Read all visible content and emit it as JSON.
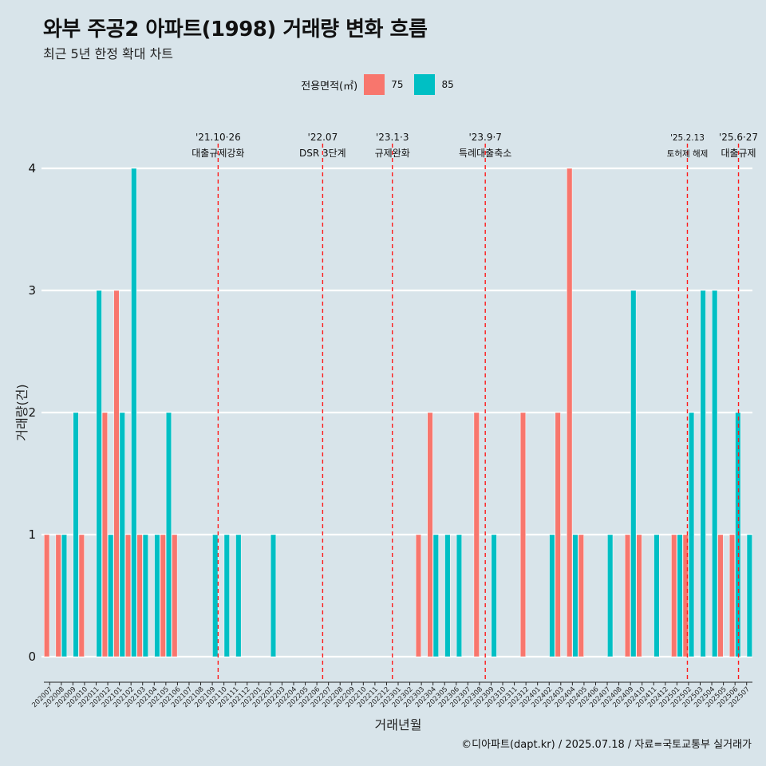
{
  "header": {
    "title": "와부 주공2 아파트(1998) 거래량 변화 흐름",
    "subtitle": "최근 5년 한정 확대 차트"
  },
  "legend": {
    "title": "전용면적(㎡)",
    "items": [
      {
        "label": "75",
        "color": "#f8766d"
      },
      {
        "label": "85",
        "color": "#00bfc4"
      }
    ]
  },
  "caption": "©디아파트(dapt.kr) / 2025.07.18 / 자료=국토교통부 실거래가",
  "chart_data": {
    "type": "bar",
    "title": "와부 주공2 아파트(1998) 거래량 변화 흐름",
    "xlabel": "거래년월",
    "ylabel": "거래량(건)",
    "ylim": [
      0,
      4
    ],
    "yticks": [
      0,
      1,
      2,
      3,
      4
    ],
    "categories": [
      "202007",
      "202008",
      "202009",
      "202010",
      "202011",
      "202012",
      "202101",
      "202102",
      "202103",
      "202104",
      "202105",
      "202106",
      "202107",
      "202108",
      "202109",
      "202110",
      "202111",
      "202112",
      "202201",
      "202202",
      "202203",
      "202204",
      "202205",
      "202206",
      "202207",
      "202208",
      "202209",
      "202210",
      "202211",
      "202212",
      "202301",
      "202302",
      "202303",
      "202304",
      "202305",
      "202306",
      "202307",
      "202308",
      "202309",
      "202310",
      "202311",
      "202312",
      "202401",
      "202402",
      "202403",
      "202404",
      "202405",
      "202406",
      "202407",
      "202408",
      "202409",
      "202410",
      "202411",
      "202412",
      "202501",
      "202502",
      "202503",
      "202504",
      "202505",
      "202506",
      "202507"
    ],
    "series": [
      {
        "name": "75",
        "color": "#f8766d",
        "values": [
          1,
          1,
          0,
          1,
          0,
          2,
          3,
          1,
          1,
          0,
          1,
          1,
          0,
          0,
          0,
          0,
          0,
          0,
          0,
          0,
          0,
          0,
          0,
          0,
          0,
          0,
          0,
          0,
          0,
          0,
          0,
          0,
          1,
          2,
          0,
          0,
          0,
          2,
          0,
          0,
          0,
          2,
          0,
          0,
          2,
          4,
          1,
          0,
          0,
          0,
          1,
          1,
          0,
          0,
          1,
          1,
          0,
          0,
          1,
          1,
          0
        ]
      },
      {
        "name": "85",
        "color": "#00bfc4",
        "values": [
          0,
          1,
          2,
          0,
          3,
          1,
          2,
          4,
          1,
          1,
          2,
          0,
          0,
          0,
          1,
          1,
          1,
          0,
          0,
          1,
          0,
          0,
          0,
          0,
          0,
          0,
          0,
          0,
          0,
          0,
          0,
          0,
          0,
          1,
          1,
          1,
          0,
          0,
          1,
          0,
          0,
          0,
          0,
          1,
          0,
          1,
          0,
          0,
          1,
          0,
          3,
          0,
          1,
          0,
          1,
          2,
          3,
          3,
          0,
          2,
          1
        ]
      }
    ],
    "events": [
      {
        "date": "'21.10·26",
        "label": "대출규제강화",
        "month": "202110",
        "offset": 0.0
      },
      {
        "date": "'22.07",
        "label": "DSR 3단계",
        "month": "202207",
        "offset": 0.0
      },
      {
        "date": "'23.1·3",
        "label": "규제완화",
        "month": "202301",
        "offset": 0.0
      },
      {
        "date": "'23.9·7",
        "label": "특례대출축소",
        "month": "202309",
        "offset": 0.0
      },
      {
        "date": "'25.2.13",
        "label": "토허제 해제",
        "month": "202502",
        "offset": 0.4
      },
      {
        "date": "'25.6·27",
        "label": "대출규제",
        "month": "202506",
        "offset": 0.8
      }
    ]
  }
}
